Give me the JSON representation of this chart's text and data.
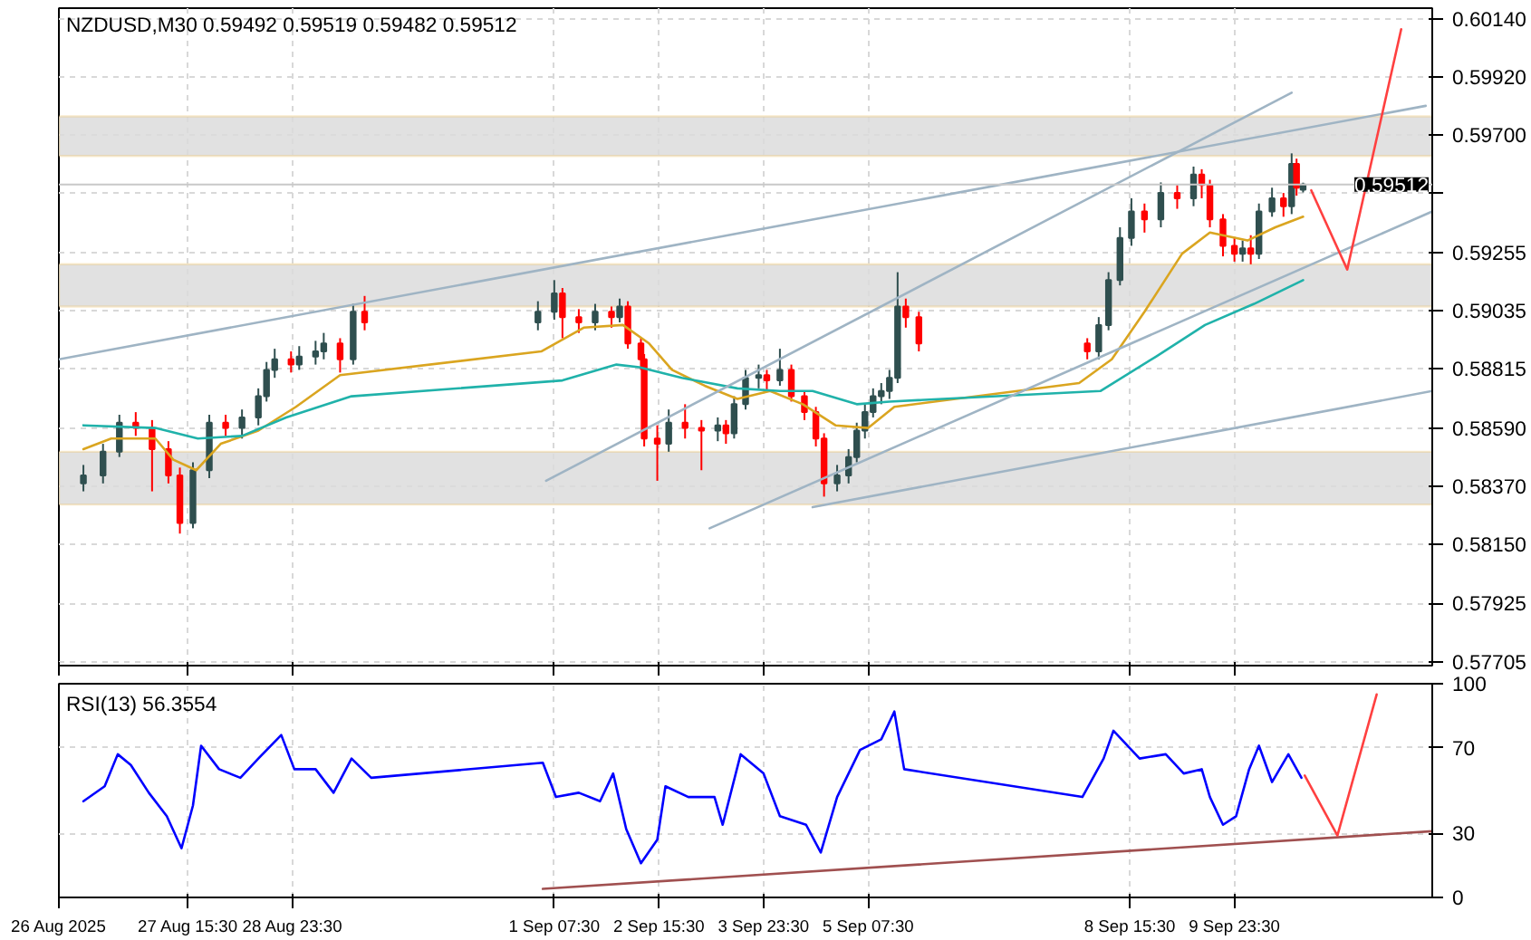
{
  "chart_data": [
    {
      "type": "candlestick",
      "title": "NZDUSD,M30  0.59492 0.59519 0.59482 0.59512",
      "x": [
        "2025-08-26T07:30",
        "2025-08-26T13:30",
        "2025-08-26T18:30",
        "2025-08-26T23:30",
        "2025-08-27T04:30",
        "2025-08-27T09:30",
        "2025-08-27T13:00",
        "2025-08-27T17:00",
        "2025-08-27T22:00",
        "2025-08-28T03:00",
        "2025-08-28T08:00",
        "2025-08-28T13:00",
        "2025-08-28T15:30",
        "2025-08-28T18:00",
        "2025-08-28T23:00",
        "2025-08-29T01:30",
        "2025-08-29T06:30",
        "2025-08-29T09:00",
        "2025-08-29T14:00",
        "2025-08-29T18:00",
        "2025-08-29T21:30",
        "2025-09-01T02:30",
        "2025-09-01T07:30",
        "2025-09-01T10:00",
        "2025-09-01T15:00",
        "2025-09-01T20:00",
        "2025-09-02T01:00",
        "2025-09-02T03:30",
        "2025-09-02T06:00",
        "2025-09-02T10:00",
        "2025-09-02T11:00",
        "2025-09-02T15:00",
        "2025-09-02T18:30",
        "2025-09-02T23:30",
        "2025-09-03T04:30",
        "2025-09-03T09:30",
        "2025-09-03T12:00",
        "2025-09-03T14:30",
        "2025-09-03T18:00",
        "2025-09-03T22:00",
        "2025-09-04T00:30",
        "2025-09-04T04:30",
        "2025-09-04T08:00",
        "2025-09-04T12:00",
        "2025-09-04T15:30",
        "2025-09-04T18:00",
        "2025-09-04T22:00",
        "2025-09-05T01:30",
        "2025-09-05T04:00",
        "2025-09-05T06:30",
        "2025-09-05T09:00",
        "2025-09-05T11:30",
        "2025-09-05T14:00",
        "2025-09-05T16:30",
        "2025-09-05T19:00",
        "2025-09-05T23:00",
        "2025-09-08T02:30",
        "2025-09-08T06:00",
        "2025-09-08T09:00",
        "2025-09-08T12:30",
        "2025-09-08T16:00",
        "2025-09-08T20:00",
        "2025-09-09T01:00",
        "2025-09-09T06:00",
        "2025-09-09T11:00",
        "2025-09-09T13:30",
        "2025-09-09T16:00",
        "2025-09-09T20:00",
        "2025-09-09T23:30",
        "2025-09-10T02:00",
        "2025-09-10T04:30",
        "2025-09-10T07:00",
        "2025-09-10T11:00",
        "2025-09-10T14:30",
        "2025-09-10T17:00",
        "2025-09-10T18:30",
        "2025-09-10T20:30"
      ],
      "ohlc": [
        [
          0.5838,
          0.5845,
          0.5835,
          0.5841
        ],
        [
          0.5841,
          0.5853,
          0.5838,
          0.585
        ],
        [
          0.585,
          0.5864,
          0.5848,
          0.5861
        ],
        [
          0.5861,
          0.5865,
          0.5856,
          0.5859
        ],
        [
          0.5859,
          0.5862,
          0.5835,
          0.5851
        ],
        [
          0.5851,
          0.5854,
          0.5838,
          0.5841
        ],
        [
          0.5841,
          0.5844,
          0.5819,
          0.5823
        ],
        [
          0.5823,
          0.5846,
          0.5821,
          0.5843
        ],
        [
          0.5843,
          0.5864,
          0.584,
          0.5861
        ],
        [
          0.5861,
          0.5864,
          0.5856,
          0.5859
        ],
        [
          0.5859,
          0.5866,
          0.5855,
          0.5863
        ],
        [
          0.5863,
          0.5874,
          0.586,
          0.5871
        ],
        [
          0.5871,
          0.5884,
          0.5869,
          0.5881
        ],
        [
          0.5881,
          0.5889,
          0.5878,
          0.5885
        ],
        [
          0.5885,
          0.5888,
          0.588,
          0.5883
        ],
        [
          0.5883,
          0.589,
          0.5881,
          0.5886
        ],
        [
          0.5886,
          0.5892,
          0.5883,
          0.5888
        ],
        [
          0.5888,
          0.5895,
          0.5885,
          0.5891
        ],
        [
          0.5891,
          0.5893,
          0.588,
          0.5885
        ],
        [
          0.5885,
          0.5906,
          0.5883,
          0.5903
        ],
        [
          0.5903,
          0.5909,
          0.5896,
          0.5899
        ],
        [
          0.5899,
          0.5907,
          0.5896,
          0.5903
        ],
        [
          0.5903,
          0.5915,
          0.59,
          0.591
        ],
        [
          0.591,
          0.5912,
          0.5893,
          0.5901
        ],
        [
          0.5901,
          0.5904,
          0.5895,
          0.5899
        ],
        [
          0.5899,
          0.5906,
          0.5896,
          0.5903
        ],
        [
          0.5903,
          0.5905,
          0.5897,
          0.5901
        ],
        [
          0.5901,
          0.5908,
          0.5899,
          0.5905
        ],
        [
          0.5905,
          0.5907,
          0.5889,
          0.5891
        ],
        [
          0.5891,
          0.5893,
          0.5881,
          0.5885
        ],
        [
          0.5885,
          0.5887,
          0.5852,
          0.5855
        ],
        [
          0.5855,
          0.586,
          0.5839,
          0.5853
        ],
        [
          0.5853,
          0.5866,
          0.585,
          0.5861
        ],
        [
          0.5861,
          0.5868,
          0.5855,
          0.5859
        ],
        [
          0.5859,
          0.5862,
          0.5843,
          0.5858
        ],
        [
          0.5858,
          0.5863,
          0.5854,
          0.586
        ],
        [
          0.586,
          0.5862,
          0.5853,
          0.5857
        ],
        [
          0.5857,
          0.5871,
          0.5855,
          0.5868
        ],
        [
          0.5868,
          0.5881,
          0.5866,
          0.5878
        ],
        [
          0.5878,
          0.5883,
          0.5874,
          0.5879
        ],
        [
          0.5879,
          0.5881,
          0.5873,
          0.5877
        ],
        [
          0.5877,
          0.5889,
          0.5875,
          0.5881
        ],
        [
          0.5881,
          0.5883,
          0.5869,
          0.5871
        ],
        [
          0.5871,
          0.5873,
          0.5862,
          0.5865
        ],
        [
          0.5865,
          0.5867,
          0.5852,
          0.5855
        ],
        [
          0.5855,
          0.5857,
          0.5833,
          0.5838
        ],
        [
          0.5838,
          0.5845,
          0.5835,
          0.5841
        ],
        [
          0.5841,
          0.5851,
          0.5838,
          0.5848
        ],
        [
          0.5848,
          0.5861,
          0.5846,
          0.5858
        ],
        [
          0.5858,
          0.5868,
          0.5855,
          0.5865
        ],
        [
          0.5865,
          0.5874,
          0.5863,
          0.5871
        ],
        [
          0.5871,
          0.5876,
          0.5868,
          0.5873
        ],
        [
          0.5873,
          0.5881,
          0.587,
          0.5878
        ],
        [
          0.5878,
          0.5918,
          0.5876,
          0.5905
        ],
        [
          0.5905,
          0.5908,
          0.5897,
          0.5901
        ],
        [
          0.5901,
          0.5903,
          0.5888,
          0.5891
        ],
        [
          0.5891,
          0.5893,
          0.5885,
          0.5888
        ],
        [
          0.5888,
          0.5901,
          0.5885,
          0.5898
        ],
        [
          0.5898,
          0.5918,
          0.5896,
          0.5915
        ],
        [
          0.5915,
          0.5935,
          0.5913,
          0.5931
        ],
        [
          0.5931,
          0.5946,
          0.5928,
          0.5941
        ],
        [
          0.5941,
          0.5944,
          0.5933,
          0.5938
        ],
        [
          0.5938,
          0.5952,
          0.5935,
          0.5948
        ],
        [
          0.5948,
          0.5951,
          0.5942,
          0.5946
        ],
        [
          0.5946,
          0.5958,
          0.5943,
          0.5955
        ],
        [
          0.5955,
          0.5957,
          0.5946,
          0.5951
        ],
        [
          0.5951,
          0.5953,
          0.5935,
          0.5938
        ],
        [
          0.5938,
          0.594,
          0.5924,
          0.5928
        ],
        [
          0.5928,
          0.5931,
          0.5922,
          0.5925
        ],
        [
          0.5925,
          0.593,
          0.5922,
          0.5927
        ],
        [
          0.5927,
          0.5932,
          0.5921,
          0.5925
        ],
        [
          0.5925,
          0.5944,
          0.5923,
          0.5941
        ],
        [
          0.5941,
          0.595,
          0.5939,
          0.5946
        ],
        [
          0.5946,
          0.5948,
          0.5939,
          0.5943
        ],
        [
          0.5943,
          0.5963,
          0.594,
          0.5959
        ],
        [
          0.5959,
          0.5961,
          0.5947,
          0.595
        ],
        [
          0.59492,
          0.59519,
          0.59482,
          0.59512
        ]
      ],
      "colors": [
        "#2f4f4f",
        "#2f4f4f",
        "#2f4f4f",
        "#ff0000",
        "#ff0000",
        "#ff0000",
        "#ff0000",
        "#2f4f4f",
        "#2f4f4f",
        "#ff0000",
        "#2f4f4f",
        "#2f4f4f",
        "#2f4f4f",
        "#2f4f4f",
        "#ff0000",
        "#2f4f4f",
        "#2f4f4f",
        "#2f4f4f",
        "#ff0000",
        "#2f4f4f",
        "#ff0000",
        "#2f4f4f",
        "#2f4f4f",
        "#ff0000",
        "#ff0000",
        "#2f4f4f",
        "#ff0000",
        "#2f4f4f",
        "#ff0000",
        "#ff0000",
        "#ff0000",
        "#ff0000",
        "#2f4f4f",
        "#ff0000",
        "#ff0000",
        "#2f4f4f",
        "#ff0000",
        "#2f4f4f",
        "#2f4f4f",
        "#2f4f4f",
        "#ff0000",
        "#2f4f4f",
        "#ff0000",
        "#ff0000",
        "#ff0000",
        "#ff0000",
        "#2f4f4f",
        "#2f4f4f",
        "#2f4f4f",
        "#2f4f4f",
        "#2f4f4f",
        "#2f4f4f",
        "#2f4f4f",
        "#2f4f4f",
        "#ff0000",
        "#ff0000",
        "#ff0000",
        "#2f4f4f",
        "#2f4f4f",
        "#2f4f4f",
        "#2f4f4f",
        "#ff0000",
        "#2f4f4f",
        "#ff0000",
        "#2f4f4f",
        "#ff0000",
        "#ff0000",
        "#ff0000",
        "#ff0000",
        "#2f4f4f",
        "#ff0000",
        "#2f4f4f",
        "#2f4f4f",
        "#ff0000",
        "#2f4f4f",
        "#ff0000",
        "#2f4f4f"
      ],
      "series": [
        {
          "type": "line",
          "color": "#daa520",
          "x": [
            "2025-08-26T07:30",
            "2025-08-26T16:00",
            "2025-08-27T05:30",
            "2025-08-27T11:00",
            "2025-08-27T18:00",
            "2025-08-28T01:30",
            "2025-08-28T13:00",
            "2025-08-29T00:30",
            "2025-08-29T14:00",
            "2025-09-01T03:30",
            "2025-09-01T16:30",
            "2025-09-02T04:30",
            "2025-09-02T12:30",
            "2025-09-02T19:30",
            "2025-09-03T05:30",
            "2025-09-03T15:30",
            "2025-09-04T01:30",
            "2025-09-04T11:30",
            "2025-09-04T21:30",
            "2025-09-05T07:30",
            "2025-09-05T15:30",
            "2025-09-08T00:00",
            "2025-09-08T10:00",
            "2025-09-08T20:00",
            "2025-09-09T07:30",
            "2025-09-09T16:00",
            "2025-09-10T03:30",
            "2025-09-10T12:00",
            "2025-09-10T20:30"
          ],
          "values": [
            0.5851,
            0.5855,
            0.5855,
            0.5847,
            0.5843,
            0.5853,
            0.5858,
            0.5867,
            0.5879,
            0.5888,
            0.5897,
            0.5898,
            0.5891,
            0.5881,
            0.5875,
            0.587,
            0.5873,
            0.5868,
            0.586,
            0.5859,
            0.5867,
            0.5876,
            0.5885,
            0.5903,
            0.5925,
            0.5933,
            0.593,
            0.5935,
            0.5939
          ]
        },
        {
          "type": "line",
          "color": "#20b2aa",
          "x": [
            "2025-08-26T07:30",
            "2025-08-27T05:30",
            "2025-08-27T18:30",
            "2025-08-28T08:00",
            "2025-08-28T21:30",
            "2025-08-29T17:30",
            "2025-09-01T10:00",
            "2025-09-02T02:30",
            "2025-09-02T09:30",
            "2025-09-02T22:30",
            "2025-09-03T15:30",
            "2025-09-04T04:30",
            "2025-09-04T14:30",
            "2025-09-05T04:00",
            "2025-09-05T14:00",
            "2025-09-08T06:30",
            "2025-09-08T23:30",
            "2025-09-09T14:30",
            "2025-09-10T05:30",
            "2025-09-10T20:30"
          ],
          "values": [
            0.586,
            0.5859,
            0.5855,
            0.5856,
            0.5863,
            0.5871,
            0.5877,
            0.5883,
            0.5882,
            0.5878,
            0.5874,
            0.5873,
            0.5873,
            0.5868,
            0.5869,
            0.5873,
            0.5886,
            0.5898,
            0.5906,
            0.5915
          ]
        },
        {
          "type": "line",
          "color": "#9fb4c4",
          "x": [
            "2025-08-26T00:00",
            "2025-09-12T10:00"
          ],
          "values": [
            0.5885,
            0.5981
          ]
        },
        {
          "type": "line",
          "color": "#9fb4c4",
          "x": [
            "2025-09-01T05:00",
            "2025-09-10T17:00"
          ],
          "values": [
            0.5839,
            0.5986
          ]
        },
        {
          "type": "line",
          "color": "#9fb4c4",
          "x": [
            "2025-09-03T07:00",
            "2025-09-12T12:00"
          ],
          "values": [
            0.5821,
            0.5941
          ]
        },
        {
          "type": "line",
          "color": "#9fb4c4",
          "x": [
            "2025-09-04T14:30",
            "2025-09-12T12:00"
          ],
          "values": [
            0.5829,
            0.5873
          ]
        },
        {
          "type": "line",
          "color": "#ff4040",
          "x": [
            "2025-09-10T23:00",
            "2025-09-11T10:00",
            "2025-09-12T02:30"
          ],
          "values": [
            0.5949,
            0.5919,
            0.601
          ]
        }
      ],
      "bands": [
        {
          "axis": "y",
          "from": 0.5962,
          "to": 0.5977,
          "color": "#dcdcdc"
        },
        {
          "axis": "y",
          "from": 0.5905,
          "to": 0.5921,
          "color": "#dcdcdc"
        },
        {
          "axis": "y",
          "from": 0.583,
          "to": 0.585,
          "color": "#dcdcdc"
        }
      ],
      "ref_lines": [
        {
          "axis": "y",
          "value": 0.59512,
          "label": "0.59512",
          "color": "#c8c8c8"
        }
      ],
      "xlim": [
        "2025-08-26T00:00",
        "2025-09-12T12:00"
      ],
      "ylim": [
        0.5769,
        0.6018
      ],
      "xticks": [
        {
          "value": "2025-08-26",
          "label": null
        },
        {
          "value": "2025-08-27T15:30",
          "label": null
        },
        {
          "value": "2025-08-28T23:30",
          "label": null
        },
        {
          "value": "2025-09-01T07:30",
          "label": null
        },
        {
          "value": "2025-09-02T15:30",
          "label": null
        },
        {
          "value": "2025-09-03T23:30",
          "label": null
        },
        {
          "value": "2025-09-05T07:30",
          "label": null
        },
        {
          "value": "2025-09-08T15:30",
          "label": null
        },
        {
          "value": "2025-09-09T23:30",
          "label": null
        }
      ],
      "yticks": [
        {
          "value": 0.6014,
          "label": "0.60140"
        },
        {
          "value": 0.5992,
          "label": "0.59920"
        },
        {
          "value": 0.597,
          "label": "0.59700"
        },
        {
          "value": 0.5948,
          "label": null
        },
        {
          "value": 0.59255,
          "label": "0.59255"
        },
        {
          "value": 0.59035,
          "label": "0.59035"
        },
        {
          "value": 0.58815,
          "label": "0.58815"
        },
        {
          "value": 0.5859,
          "label": "0.58590"
        },
        {
          "value": 0.5837,
          "label": "0.58370"
        },
        {
          "value": 0.5815,
          "label": "0.58150"
        },
        {
          "value": 0.57925,
          "label": "0.57925"
        },
        {
          "value": 0.57705,
          "label": "0.57705"
        }
      ],
      "tick_labels": "y",
      "grid": true
    },
    {
      "type": "line",
      "title": "RSI(13) 56.3554",
      "x": [
        "2025-08-26T07:30",
        "2025-08-26T14:00",
        "2025-08-26T18:00",
        "2025-08-26T22:00",
        "2025-08-27T03:30",
        "2025-08-27T09:00",
        "2025-08-27T13:30",
        "2025-08-27T17:00",
        "2025-08-27T19:30",
        "2025-08-28T01:00",
        "2025-08-28T07:30",
        "2025-08-28T13:00",
        "2025-08-28T20:00",
        "2025-08-29T00:00",
        "2025-08-29T06:30",
        "2025-08-29T12:00",
        "2025-08-29T17:30",
        "2025-08-29T23:30",
        "2025-09-01T04:00",
        "2025-09-01T08:00",
        "2025-09-01T15:00",
        "2025-09-01T21:30",
        "2025-09-02T01:30",
        "2025-09-02T05:30",
        "2025-09-02T10:00",
        "2025-09-02T15:00",
        "2025-09-02T17:30",
        "2025-09-03T00:30",
        "2025-09-03T08:30",
        "2025-09-03T11:00",
        "2025-09-03T16:30",
        "2025-09-03T23:30",
        "2025-09-04T04:30",
        "2025-09-04T12:30",
        "2025-09-04T17:00",
        "2025-09-04T22:00",
        "2025-09-05T05:00",
        "2025-09-05T11:30",
        "2025-09-05T15:30",
        "2025-09-05T18:30",
        "2025-09-08T01:00",
        "2025-09-08T07:30",
        "2025-09-08T10:30",
        "2025-09-08T18:30",
        "2025-09-09T02:30",
        "2025-09-09T08:00",
        "2025-09-09T13:30",
        "2025-09-09T16:00",
        "2025-09-09T20:00",
        "2025-09-10T00:00",
        "2025-09-10T04:00",
        "2025-09-10T07:00",
        "2025-09-10T11:00",
        "2025-09-10T16:00",
        "2025-09-10T20:00"
      ],
      "series": [
        {
          "color": "#0000ff",
          "values": [
            45,
            52,
            67,
            62,
            49,
            38,
            23,
            43,
            71,
            60,
            56,
            65,
            76,
            60,
            60,
            49,
            65,
            56,
            63,
            47,
            49,
            45,
            58,
            32,
            16,
            27,
            52,
            47,
            47,
            34,
            67,
            58,
            38,
            34,
            21,
            47,
            69,
            74,
            87,
            60,
            47,
            65,
            78,
            65,
            67,
            58,
            60,
            47,
            34,
            38,
            60,
            71,
            54,
            67,
            56
          ]
        },
        {
          "type": "line",
          "color": "#a05050",
          "x": [
            "2025-09-01T04:00",
            "2025-09-12T12:00"
          ],
          "values": [
            4,
            31
          ]
        },
        {
          "type": "line",
          "color": "#ff4040",
          "x": [
            "2025-09-10T21:00",
            "2025-09-11T07:00",
            "2025-09-11T19:00"
          ],
          "values": [
            57,
            29,
            95
          ]
        }
      ],
      "xlim": [
        "2025-08-26T00:00",
        "2025-09-12T12:00"
      ],
      "ylim": [
        0,
        100
      ],
      "yticks": [
        0,
        30,
        70,
        100
      ],
      "xticks": [
        {
          "value": "2025-08-26",
          "label": "26 Aug 2025"
        },
        {
          "value": "2025-08-27T15:30",
          "label": "27 Aug 15:30"
        },
        {
          "value": "2025-08-28T23:30",
          "label": "28 Aug 23:30"
        },
        {
          "value": "2025-09-01T07:30",
          "label": "1 Sep 07:30"
        },
        {
          "value": "2025-09-02T15:30",
          "label": "2 Sep 15:30"
        },
        {
          "value": "2025-09-03T23:30",
          "label": "3 Sep 23:30"
        },
        {
          "value": "2025-09-05T07:30",
          "label": "5 Sep 07:30"
        },
        {
          "value": "2025-09-08T15:30",
          "label": "8 Sep 15:30"
        },
        {
          "value": "2025-09-09T23:30",
          "label": "9 Sep 23:30"
        }
      ],
      "grid": true
    }
  ]
}
